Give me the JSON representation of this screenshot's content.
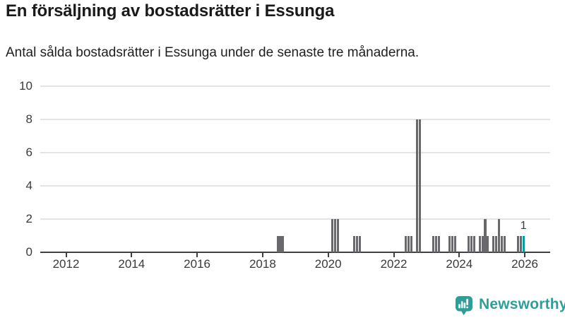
{
  "branding": {
    "name": "Newsworthy",
    "color": "#2E9E98",
    "icon": "newsworthy-bubble-chart-icon"
  },
  "colors": {
    "bar": "#68686D",
    "highlight": "#00A1A6",
    "axis": "#414141",
    "grid": "#E4E4E4",
    "text": "#3A3A3A"
  },
  "chart_data": {
    "type": "bar",
    "title": "En försäljning av bostadsrätter i Essunga",
    "subtitle": "Antal sålda bostadsrätter i Essunga under de senaste tre månaderna.",
    "xlabel": "",
    "ylabel": "",
    "ylim": [
      0,
      10
    ],
    "yticks": [
      0,
      2,
      4,
      6,
      8,
      10
    ],
    "xticks": [
      2012,
      2014,
      2016,
      2018,
      2020,
      2022,
      2024,
      2026
    ],
    "x_domain_years": [
      2011.2,
      2026.8
    ],
    "grid": "horizontal",
    "legend": "none",
    "bar_unit": "month",
    "points": [
      {
        "date": "2018-06",
        "value": 1
      },
      {
        "date": "2018-07",
        "value": 1
      },
      {
        "date": "2018-08",
        "value": 1
      },
      {
        "date": "2020-02",
        "value": 2
      },
      {
        "date": "2020-03",
        "value": 2
      },
      {
        "date": "2020-04",
        "value": 2
      },
      {
        "date": "2020-10",
        "value": 1
      },
      {
        "date": "2020-11",
        "value": 1
      },
      {
        "date": "2020-12",
        "value": 1
      },
      {
        "date": "2022-05",
        "value": 1
      },
      {
        "date": "2022-06",
        "value": 1
      },
      {
        "date": "2022-07",
        "value": 1
      },
      {
        "date": "2022-09",
        "value": 8
      },
      {
        "date": "2022-10",
        "value": 8
      },
      {
        "date": "2023-03",
        "value": 1
      },
      {
        "date": "2023-04",
        "value": 1
      },
      {
        "date": "2023-05",
        "value": 1
      },
      {
        "date": "2023-09",
        "value": 1
      },
      {
        "date": "2023-10",
        "value": 1
      },
      {
        "date": "2023-11",
        "value": 1
      },
      {
        "date": "2024-04",
        "value": 1
      },
      {
        "date": "2024-05",
        "value": 1
      },
      {
        "date": "2024-06",
        "value": 1
      },
      {
        "date": "2024-08",
        "value": 1
      },
      {
        "date": "2024-09",
        "value": 1
      },
      {
        "date": "2024-10",
        "value": 2
      },
      {
        "date": "2024-11",
        "value": 1
      },
      {
        "date": "2025-01",
        "value": 1
      },
      {
        "date": "2025-02",
        "value": 1
      },
      {
        "date": "2025-03",
        "value": 2
      },
      {
        "date": "2025-04",
        "value": 1
      },
      {
        "date": "2025-05",
        "value": 1
      },
      {
        "date": "2025-10",
        "value": 1
      },
      {
        "date": "2025-11",
        "value": 1
      },
      {
        "date": "2025-12",
        "value": 1,
        "highlight": true,
        "label": "1"
      }
    ]
  }
}
